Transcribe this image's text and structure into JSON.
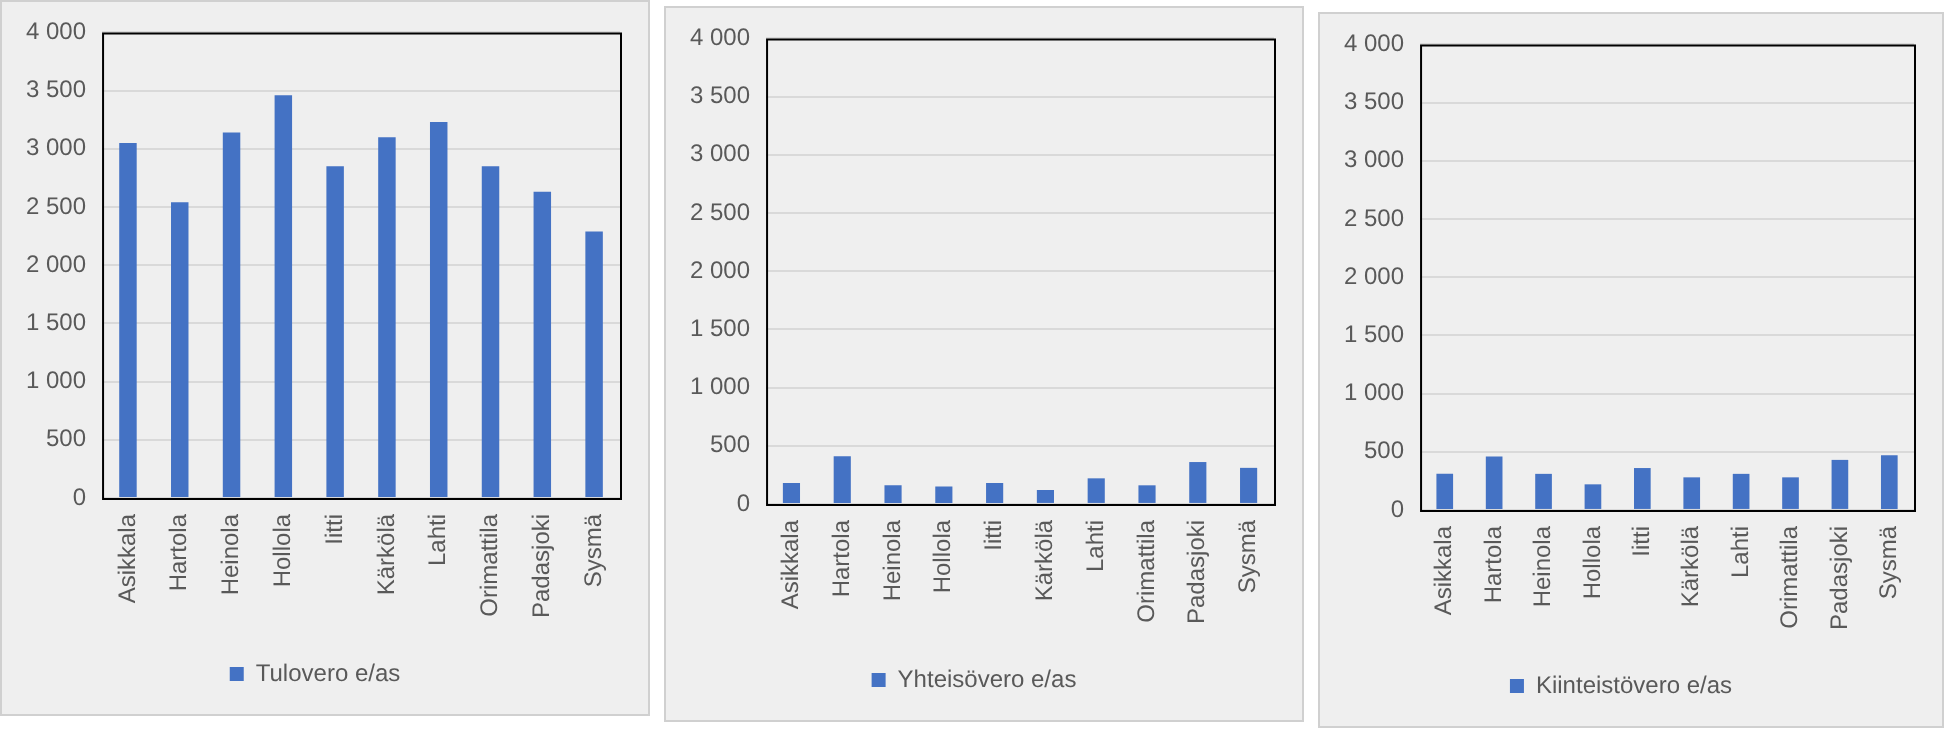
{
  "chart_data": [
    {
      "type": "bar",
      "categories": [
        "Asikkala",
        "Hartola",
        "Heinola",
        "Hollola",
        "Iitti",
        "Kärkölä",
        "Lahti",
        "Orimattila",
        "Padasjoki",
        "Sysmä"
      ],
      "series": [
        {
          "name": "Tulovero e/as",
          "color": "#4472c4",
          "values": [
            3050,
            2540,
            3140,
            3460,
            2850,
            3100,
            3230,
            2850,
            2630,
            2290
          ]
        }
      ],
      "ylim": [
        0,
        4000
      ],
      "yticks": [
        {
          "value": 0,
          "label": "0"
        },
        {
          "value": 500,
          "label": "500"
        },
        {
          "value": 1000,
          "label": "1 000"
        },
        {
          "value": 1500,
          "label": "1 500"
        },
        {
          "value": 2000,
          "label": "2 000"
        },
        {
          "value": 2500,
          "label": "2 500"
        },
        {
          "value": 3000,
          "label": "3 000"
        },
        {
          "value": 3500,
          "label": "3 500"
        },
        {
          "value": 4000,
          "label": "4 000"
        }
      ],
      "grid": "y",
      "legend": "bottom"
    },
    {
      "type": "bar",
      "categories": [
        "Asikkala",
        "Hartola",
        "Heinola",
        "Hollola",
        "Iitti",
        "Kärkölä",
        "Lahti",
        "Orimattila",
        "Padasjoki",
        "Sysmä"
      ],
      "series": [
        {
          "name": "Yhteisövero e/as",
          "color": "#4472c4",
          "values": [
            180,
            410,
            160,
            150,
            180,
            120,
            220,
            160,
            360,
            310
          ]
        }
      ],
      "ylim": [
        0,
        4000
      ],
      "yticks": [
        {
          "value": 0,
          "label": "0"
        },
        {
          "value": 500,
          "label": "500"
        },
        {
          "value": 1000,
          "label": "1 000"
        },
        {
          "value": 1500,
          "label": "1 500"
        },
        {
          "value": 2000,
          "label": "2 000"
        },
        {
          "value": 2500,
          "label": "2 500"
        },
        {
          "value": 3000,
          "label": "3 000"
        },
        {
          "value": 3500,
          "label": "3 500"
        },
        {
          "value": 4000,
          "label": "4 000"
        }
      ],
      "grid": "y",
      "legend": "bottom"
    },
    {
      "type": "bar",
      "categories": [
        "Asikkala",
        "Hartola",
        "Heinola",
        "Hollola",
        "Iitti",
        "Kärkölä",
        "Lahti",
        "Orimattila",
        "Padasjoki",
        "Sysmä"
      ],
      "series": [
        {
          "name": "Kiinteistövero e/as",
          "color": "#4472c4",
          "values": [
            310,
            460,
            310,
            220,
            360,
            280,
            310,
            280,
            430,
            470
          ]
        }
      ],
      "ylim": [
        0,
        4000
      ],
      "yticks": [
        {
          "value": 0,
          "label": "0"
        },
        {
          "value": 500,
          "label": "500"
        },
        {
          "value": 1000,
          "label": "1 000"
        },
        {
          "value": 1500,
          "label": "1 500"
        },
        {
          "value": 2000,
          "label": "2 000"
        },
        {
          "value": 2500,
          "label": "2 500"
        },
        {
          "value": 3000,
          "label": "3 000"
        },
        {
          "value": 3500,
          "label": "3 500"
        },
        {
          "value": 4000,
          "label": "4 000"
        }
      ],
      "grid": "y",
      "legend": "bottom"
    }
  ]
}
